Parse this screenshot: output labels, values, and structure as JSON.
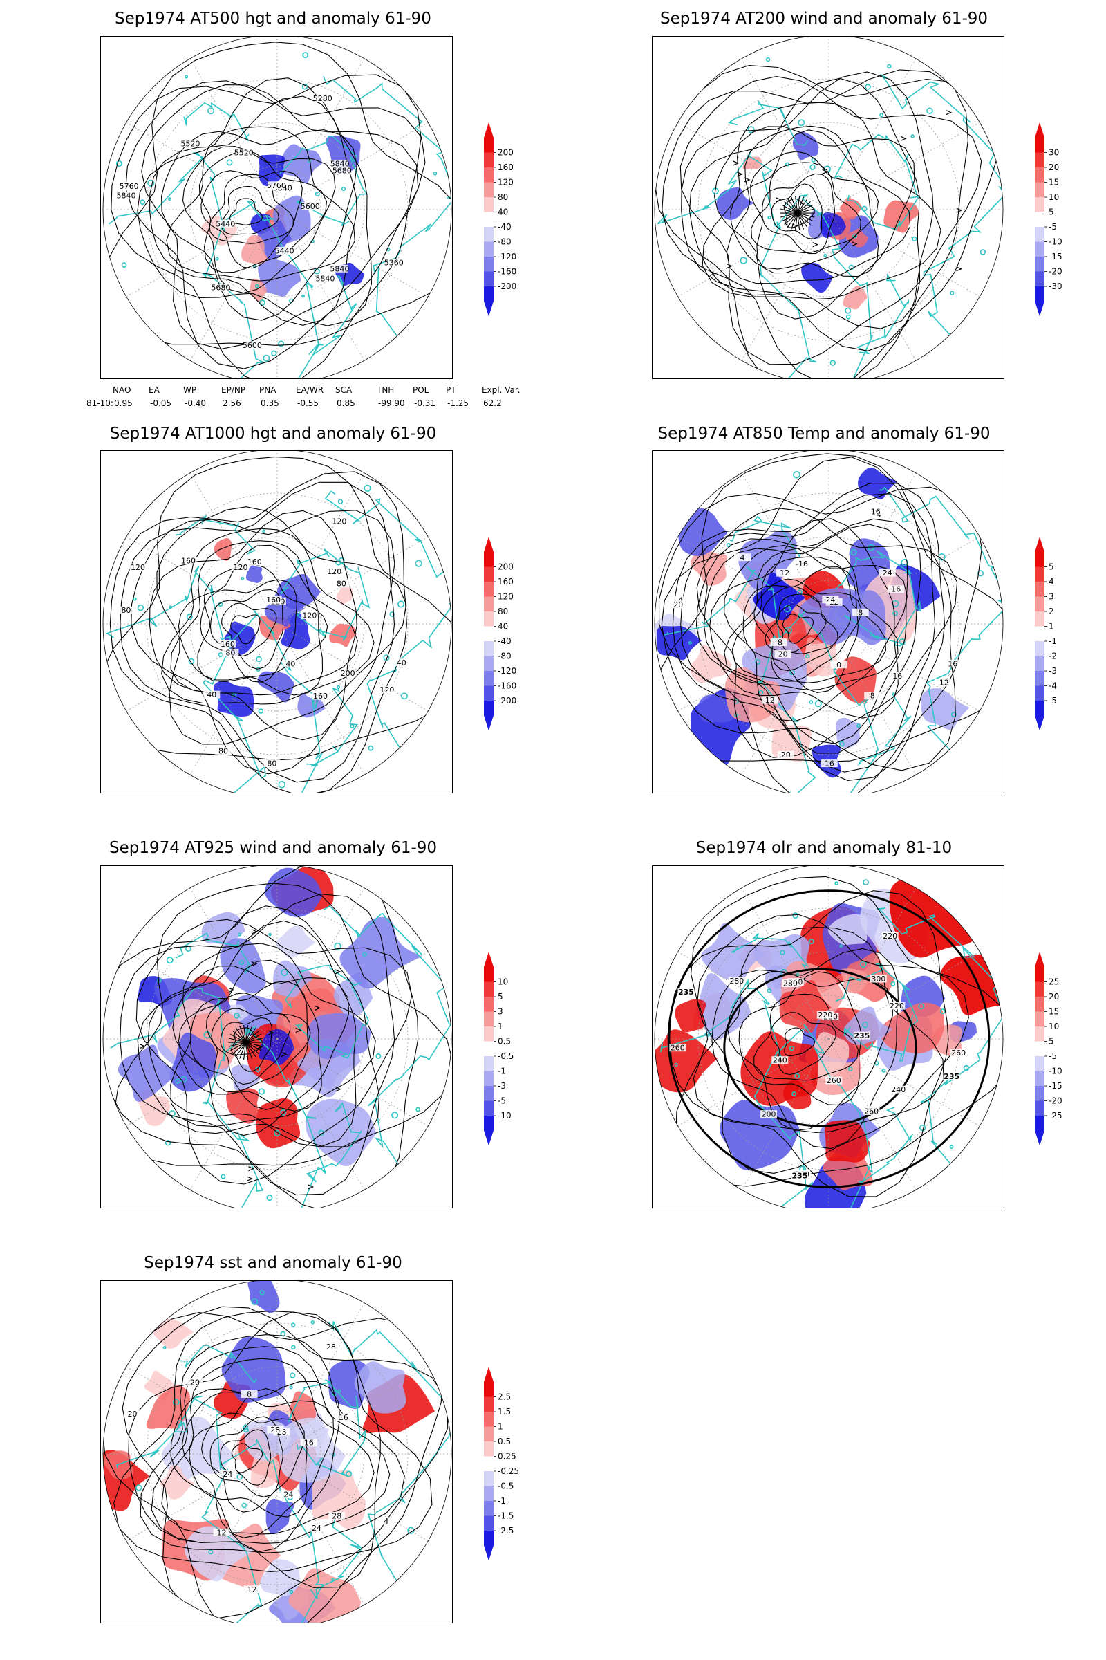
{
  "panels": [
    {
      "id": "p1",
      "title": "Sep1974 AT500 hgt and anomaly 61-90",
      "kind": "hgt500",
      "contour_labels": [
        "5840",
        "5840",
        "5760",
        "5680",
        "5600",
        "5520",
        "5360",
        "5440",
        "5280",
        "5440",
        "5520",
        "5600",
        "5680",
        "5760",
        "5840",
        "5840",
        "5840"
      ],
      "legend": [
        "200",
        "160",
        "120",
        "80",
        "40",
        "-40",
        "-80",
        "-120",
        "-160",
        "-200"
      ]
    },
    {
      "id": "p2",
      "title": "Sep1974 AT200 wind and anomaly 61-90",
      "kind": "wind200",
      "contour_labels": [],
      "legend": [
        "30",
        "20",
        "15",
        "10",
        "5",
        "-5",
        "-10",
        "-15",
        "-20",
        "-30"
      ]
    },
    {
      "id": "p3",
      "title": "Sep1974 AT1000 hgt and anomaly 61-90",
      "kind": "hgt1000",
      "contour_labels": [
        "120",
        "160",
        "120",
        "80",
        "80",
        "160",
        "120",
        "160",
        "120",
        "40",
        "160",
        "120",
        "40",
        "160",
        "200",
        "80",
        "120",
        "80",
        "120",
        "40",
        "80"
      ],
      "legend": [
        "200",
        "160",
        "120",
        "80",
        "40",
        "-40",
        "-80",
        "-120",
        "-160",
        "-200"
      ]
    },
    {
      "id": "p4",
      "title": "Sep1974 AT850 Temp and anomaly 61-90",
      "kind": "temp850",
      "contour_labels": [
        "12",
        "8",
        "4",
        "16",
        "20",
        "-16",
        "-12",
        "-8",
        "-4",
        "0",
        "4",
        "8",
        "12",
        "24",
        "16",
        "20",
        "24",
        "16",
        "12",
        "16",
        "20",
        "16"
      ],
      "legend": [
        "5",
        "4",
        "3",
        "2",
        "1",
        "-1",
        "-2",
        "-3",
        "-4",
        "-5"
      ]
    },
    {
      "id": "p5",
      "title": "Sep1974 AT925 wind and anomaly 61-90",
      "kind": "wind925",
      "contour_labels": [],
      "legend": [
        "10",
        "5",
        "3",
        "1",
        "0.5",
        "-0.5",
        "-1",
        "-3",
        "-5",
        "-10"
      ]
    },
    {
      "id": "p6",
      "title": "Sep1974 olr and anomaly 81-10",
      "kind": "olr",
      "contour_labels": [
        "280",
        "260",
        "235",
        "220",
        "240",
        "260",
        "235",
        "240",
        "220",
        "260",
        "280",
        "235",
        "200",
        "220",
        "240",
        "260",
        "300",
        "235",
        "280",
        "260"
      ],
      "legend": [
        "25",
        "20",
        "15",
        "10",
        "5",
        "-5",
        "-10",
        "-15",
        "-20",
        "-25"
      ]
    },
    {
      "id": "p7",
      "title": "Sep1974 sst and anomaly 61-90",
      "kind": "sst",
      "contour_labels": [
        "28",
        "24",
        "20",
        "16",
        "12",
        "8",
        "4",
        "24",
        "28",
        "24",
        "20",
        "16",
        "12",
        "28",
        "28"
      ],
      "legend": [
        "2.5",
        "1.5",
        "1",
        "0.5",
        "0.25",
        "-0.25",
        "-0.5",
        "-1",
        "-1.5",
        "-2.5"
      ]
    }
  ],
  "teleconnection": {
    "headers": [
      "NAO",
      "EA",
      "WP",
      "EP/NP",
      "PNA",
      "EA/WR",
      "SCA",
      "TNH",
      "POL",
      "PT",
      "Expl. Var."
    ],
    "row_label": "81-10:",
    "values": [
      "0.95",
      "-0.05",
      "-0.40",
      "2.56",
      "0.35",
      "-0.55",
      "0.85",
      "-99.90",
      "-0.31",
      "-1.25",
      "62.2"
    ]
  },
  "colors": {
    "coast": "#2ec4c4",
    "frame": "#000000",
    "contour": "#000000",
    "warm": [
      "#e80a0a",
      "#f03a3a",
      "#f56a6a",
      "#f79a9a",
      "#fbcaca"
    ],
    "cold": [
      "#d4d4f7",
      "#a9a9f2",
      "#7e7eec",
      "#5353e6",
      "#1a1ae0"
    ]
  }
}
